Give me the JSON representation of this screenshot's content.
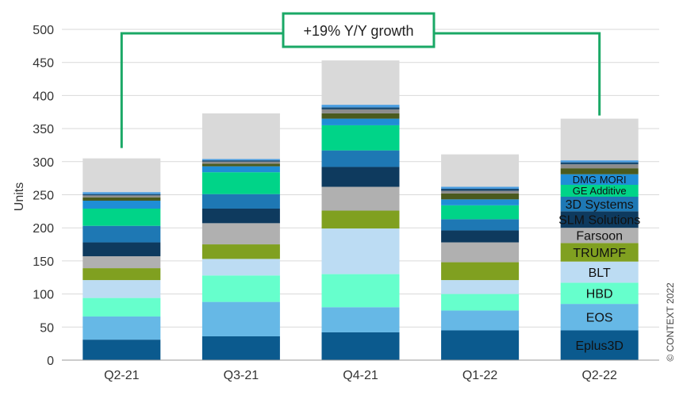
{
  "chart_data": {
    "type": "bar",
    "stacked": true,
    "title": "",
    "xlabel": "",
    "ylabel": "Units",
    "ylim": [
      0,
      500
    ],
    "yticks": [
      0,
      50,
      100,
      150,
      200,
      250,
      300,
      350,
      400,
      450,
      500
    ],
    "grid": true,
    "categories": [
      "Q2-21",
      "Q3-21",
      "Q4-21",
      "Q1-22",
      "Q2-22"
    ],
    "series": [
      {
        "name": "Eplus3D",
        "color": "#0b5a8e",
        "label_color": "#ffffff",
        "values": [
          31,
          36,
          42,
          45,
          45
        ]
      },
      {
        "name": "EOS",
        "color": "#66b8e6",
        "label_color": "#111111",
        "values": [
          35,
          52,
          38,
          30,
          40
        ]
      },
      {
        "name": "HBD",
        "color": "#66ffcc",
        "label_color": "#111111",
        "values": [
          28,
          40,
          50,
          25,
          32
        ]
      },
      {
        "name": "BLT",
        "color": "#bcdcf3",
        "label_color": "#111111",
        "values": [
          27,
          25,
          69,
          21,
          32
        ]
      },
      {
        "name": "TRUMPF",
        "color": "#80a020",
        "label_color": "#111111",
        "values": [
          18,
          22,
          27,
          27,
          28
        ]
      },
      {
        "name": "Farsoon",
        "color": "#b0b0b0",
        "label_color": "#111111",
        "values": [
          18,
          32,
          36,
          30,
          23
        ]
      },
      {
        "name": "SLM Solutions",
        "color": "#0e3a5e",
        "label_color": "#ffffff",
        "values": [
          21,
          22,
          30,
          18,
          25
        ]
      },
      {
        "name": "3D Systems",
        "color": "#1e78b4",
        "label_color": "#ffffff",
        "values": [
          25,
          22,
          25,
          17,
          22
        ]
      },
      {
        "name": "GE Additive",
        "color": "#00d488",
        "label_color": "#ffffff",
        "values": [
          26,
          33,
          38,
          21,
          18
        ]
      },
      {
        "name": "DMG MORI",
        "color": "#1f8ed6",
        "label_color": "#ffffff",
        "values": [
          12,
          9,
          10,
          9,
          16
        ]
      },
      {
        "name": "",
        "color": "#4a5a1e",
        "values": [
          5,
          4,
          8,
          9,
          9
        ]
      },
      {
        "name": "",
        "color": "#8c8c8c",
        "values": [
          3,
          3,
          6,
          4,
          6
        ]
      },
      {
        "name": "",
        "color": "#1a4a70",
        "values": [
          2,
          2,
          3,
          3,
          3
        ]
      },
      {
        "name": "",
        "color": "#4a9de0",
        "values": [
          3,
          2,
          4,
          3,
          3
        ]
      },
      {
        "name": "",
        "color": "#d9d9d9",
        "values": [
          51,
          69,
          67,
          49,
          63
        ]
      }
    ],
    "annotation": "+19% Y/Y growth",
    "annotation_color": "#1aa866",
    "source_note": "© CONTEXT 2022"
  }
}
